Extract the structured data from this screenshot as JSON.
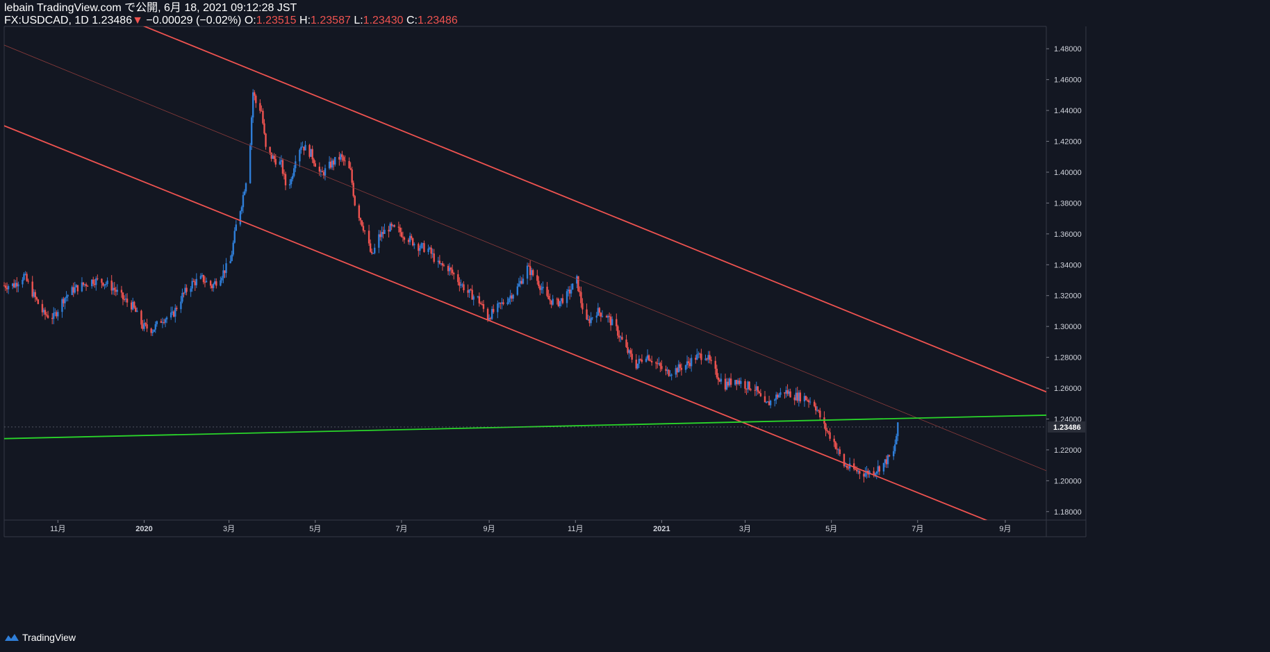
{
  "header": {
    "publish_line": "lebain TradingView.com で公開, 6月 18, 2021 09:12:28 JST",
    "symbol": "FX:USDCAD, 1D",
    "last": "1.23486",
    "change_arrow": "▼",
    "change": "−0.00029 (−0.02%)",
    "o_label": "O:",
    "o_value": "1.23515",
    "h_label": "H:",
    "h_value": "1.23587",
    "l_label": "L:",
    "l_value": "1.23430",
    "c_label": "C:",
    "c_value": "1.23486"
  },
  "footer": {
    "brand": "TradingView",
    "logo_icon": "tradingview-logo-icon"
  },
  "colors": {
    "background": "#131722",
    "up": "#2f7ed8",
    "down": "#ef5350",
    "channel": "#ef5350",
    "support": "#2ad62a",
    "axis_text": "#d1d4dc",
    "price_tag_bg": "#2a2e39"
  },
  "chart_data": {
    "type": "candlestick",
    "symbol": "FX:USDCAD",
    "interval": "1D",
    "y_ticks": [
      "1.48000",
      "1.46000",
      "1.44000",
      "1.42000",
      "1.40000",
      "1.38000",
      "1.36000",
      "1.34000",
      "1.32000",
      "1.30000",
      "1.28000",
      "1.26000",
      "1.24000",
      "1.22000",
      "1.20000",
      "1.18000"
    ],
    "ylim": [
      1.1745,
      1.4945
    ],
    "x_ticks": [
      {
        "label": "11月",
        "date": "2019-11-01"
      },
      {
        "label": "2020",
        "date": "2020-01-01"
      },
      {
        "label": "3月",
        "date": "2020-03-01"
      },
      {
        "label": "5月",
        "date": "2020-05-01"
      },
      {
        "label": "7月",
        "date": "2020-07-01"
      },
      {
        "label": "9月",
        "date": "2020-09-01"
      },
      {
        "label": "11月",
        "date": "2020-11-01"
      },
      {
        "label": "2021",
        "date": "2021-01-01"
      },
      {
        "label": "3月",
        "date": "2021-03-01"
      },
      {
        "label": "5月",
        "date": "2021-05-01"
      },
      {
        "label": "7月",
        "date": "2021-07-01"
      },
      {
        "label": "9月",
        "date": "2021-09-01"
      }
    ],
    "xlim": [
      "2019-09-24",
      "2021-09-30"
    ],
    "last_price_label": "1.23486",
    "last_price": 1.23486,
    "price_path": [
      [
        "2019-09-24",
        1.3265
      ],
      [
        "2019-10-01",
        1.327
      ],
      [
        "2019-10-08",
        1.333
      ],
      [
        "2019-10-15",
        1.32
      ],
      [
        "2019-10-22",
        1.308
      ],
      [
        "2019-10-29",
        1.306
      ],
      [
        "2019-11-05",
        1.318
      ],
      [
        "2019-11-12",
        1.324
      ],
      [
        "2019-11-19",
        1.327
      ],
      [
        "2019-11-26",
        1.33
      ],
      [
        "2019-12-03",
        1.329
      ],
      [
        "2019-12-10",
        1.325
      ],
      [
        "2019-12-17",
        1.318
      ],
      [
        "2019-12-24",
        1.313
      ],
      [
        "2019-12-31",
        1.3
      ],
      [
        "2020-01-07",
        1.298
      ],
      [
        "2020-01-14",
        1.305
      ],
      [
        "2020-01-21",
        1.307
      ],
      [
        "2020-01-28",
        1.32
      ],
      [
        "2020-02-04",
        1.328
      ],
      [
        "2020-02-11",
        1.331
      ],
      [
        "2020-02-18",
        1.326
      ],
      [
        "2020-02-25",
        1.334
      ],
      [
        "2020-03-02",
        1.342
      ],
      [
        "2020-03-06",
        1.365
      ],
      [
        "2020-03-10",
        1.38
      ],
      [
        "2020-03-13",
        1.395
      ],
      [
        "2020-03-16",
        1.42
      ],
      [
        "2020-03-18",
        1.452
      ],
      [
        "2020-03-20",
        1.445
      ],
      [
        "2020-03-24",
        1.44
      ],
      [
        "2020-03-27",
        1.415
      ],
      [
        "2020-03-31",
        1.41
      ],
      [
        "2020-04-07",
        1.405
      ],
      [
        "2020-04-10",
        1.392
      ],
      [
        "2020-04-14",
        1.395
      ],
      [
        "2020-04-17",
        1.41
      ],
      [
        "2020-04-21",
        1.418
      ],
      [
        "2020-04-28",
        1.412
      ],
      [
        "2020-05-05",
        1.398
      ],
      [
        "2020-05-12",
        1.405
      ],
      [
        "2020-05-19",
        1.41
      ],
      [
        "2020-05-26",
        1.4
      ],
      [
        "2020-05-29",
        1.38
      ],
      [
        "2020-06-05",
        1.362
      ],
      [
        "2020-06-10",
        1.345
      ],
      [
        "2020-06-15",
        1.358
      ],
      [
        "2020-06-22",
        1.364
      ],
      [
        "2020-06-29",
        1.362
      ],
      [
        "2020-07-06",
        1.357
      ],
      [
        "2020-07-13",
        1.352
      ],
      [
        "2020-07-20",
        1.35
      ],
      [
        "2020-07-27",
        1.34
      ],
      [
        "2020-08-03",
        1.338
      ],
      [
        "2020-08-10",
        1.33
      ],
      [
        "2020-08-17",
        1.322
      ],
      [
        "2020-08-24",
        1.318
      ],
      [
        "2020-08-31",
        1.306
      ],
      [
        "2020-09-07",
        1.312
      ],
      [
        "2020-09-14",
        1.318
      ],
      [
        "2020-09-21",
        1.325
      ],
      [
        "2020-09-28",
        1.338
      ],
      [
        "2020-10-05",
        1.33
      ],
      [
        "2020-10-12",
        1.318
      ],
      [
        "2020-10-19",
        1.315
      ],
      [
        "2020-10-26",
        1.32
      ],
      [
        "2020-11-02",
        1.33
      ],
      [
        "2020-11-05",
        1.316
      ],
      [
        "2020-11-09",
        1.302
      ],
      [
        "2020-11-16",
        1.31
      ],
      [
        "2020-11-23",
        1.307
      ],
      [
        "2020-11-30",
        1.298
      ],
      [
        "2020-12-07",
        1.285
      ],
      [
        "2020-12-14",
        1.275
      ],
      [
        "2020-12-21",
        1.282
      ],
      [
        "2020-12-28",
        1.276
      ],
      [
        "2021-01-04",
        1.27
      ],
      [
        "2021-01-11",
        1.272
      ],
      [
        "2021-01-18",
        1.275
      ],
      [
        "2021-01-25",
        1.28
      ],
      [
        "2021-02-01",
        1.282
      ],
      [
        "2021-02-08",
        1.27
      ],
      [
        "2021-02-15",
        1.262
      ],
      [
        "2021-02-22",
        1.266
      ],
      [
        "2021-03-01",
        1.262
      ],
      [
        "2021-03-08",
        1.26
      ],
      [
        "2021-03-15",
        1.248
      ],
      [
        "2021-03-22",
        1.254
      ],
      [
        "2021-03-29",
        1.258
      ],
      [
        "2021-04-05",
        1.255
      ],
      [
        "2021-04-12",
        1.254
      ],
      [
        "2021-04-19",
        1.25
      ],
      [
        "2021-04-26",
        1.235
      ],
      [
        "2021-05-03",
        1.225
      ],
      [
        "2021-05-10",
        1.21
      ],
      [
        "2021-05-17",
        1.207
      ],
      [
        "2021-05-24",
        1.205
      ],
      [
        "2021-05-31",
        1.206
      ],
      [
        "2021-06-07",
        1.211
      ],
      [
        "2021-06-14",
        1.218
      ],
      [
        "2021-06-17",
        1.23486
      ]
    ],
    "channel_lines": [
      {
        "points": [
          [
            "2020-03-18",
            1.466
          ],
          [
            "2021-09-30",
            1.2576
          ]
        ]
      },
      {
        "points": [
          [
            "2020-03-18",
            1.3653
          ],
          [
            "2021-09-30",
            1.1588
          ]
        ]
      },
      {
        "points": [
          [
            "2020-03-18",
            1.4165
          ],
          [
            "2021-09-30",
            1.2065
          ]
        ]
      }
    ],
    "support_line": {
      "points": [
        [
          "2019-09-24",
          1.2273
        ],
        [
          "2021-09-30",
          1.2425
        ]
      ]
    }
  }
}
